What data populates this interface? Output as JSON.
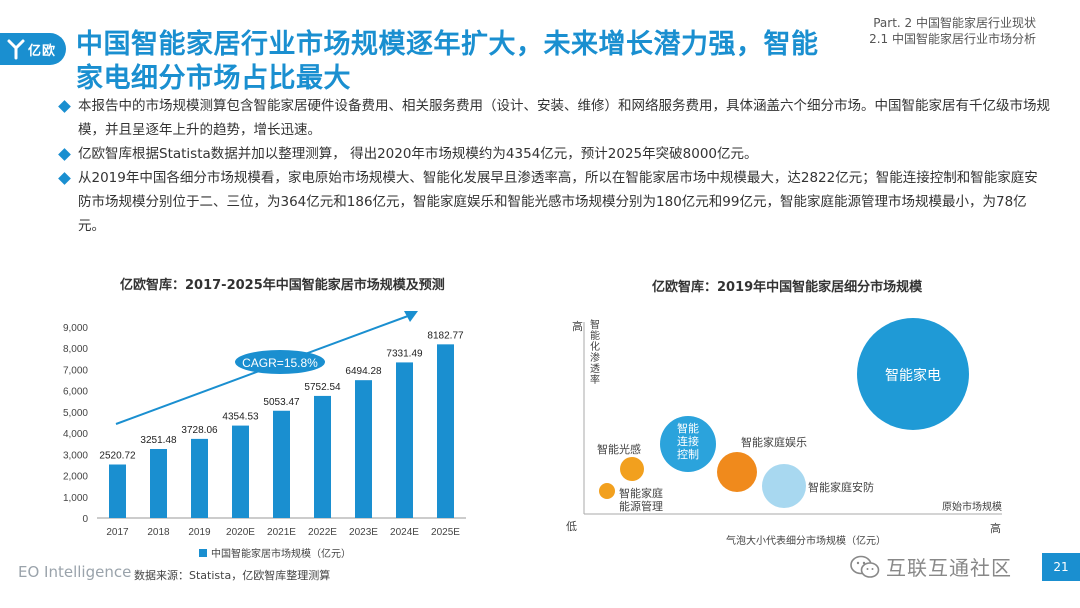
{
  "logo": {
    "text": "亿欧"
  },
  "header": {
    "part": "Part. 2 中国智能家居行业现状",
    "section": "2.1 中国智能家居行业市场分析",
    "title": "中国智能家居行业市场规模逐年扩大，未来增长潜力强，智能家电细分市场占比最大"
  },
  "bullets": [
    "本报告中的市场规模测算包含智能家居硬件设备费用、相关服务费用（设计、安装、维修）和网络服务费用，具体涵盖六个细分市场。中国智能家居有千亿级市场规模，并且呈逐年上升的趋势，增长迅速。",
    "亿欧智库根据Statista数据并加以整理测算， 得出2020年市场规模约为4354亿元，预计2025年突破8000亿元。",
    "从2019年中国各细分市场规模看，家电原始市场规模大、智能化发展早且渗透率高，所以在智能家居市场中规模最大，达2822亿元；智能连接控制和智能家庭安防市场规模分别位于二、三位，为364亿元和186亿元，智能家庭娱乐和智能光感市场规模分别为180亿元和99亿元，智能家庭能源管理市场规模最小，为78亿元。"
  ],
  "chart_data": [
    {
      "type": "bar",
      "title": "亿欧智库：2017-2025年中国智能家居市场规模及预测",
      "categories": [
        "2017",
        "2018",
        "2019",
        "2020E",
        "2021E",
        "2022E",
        "2023E",
        "2024E",
        "2025E"
      ],
      "series": [
        {
          "name": "中国智能家居市场规模（亿元）",
          "values": [
            2520.72,
            3251.48,
            3728.06,
            4354.53,
            5053.47,
            5752.54,
            6494.28,
            7331.49,
            8182.77
          ]
        }
      ],
      "value_labels": [
        "2520.72",
        "3251.48",
        "3728.06",
        "4354.53",
        "5053.47",
        "5752.54",
        "6494.28",
        "7331.49",
        "8182.77"
      ],
      "ylim": [
        0,
        9000
      ],
      "yticks": [
        "0",
        "1,000",
        "2,000",
        "3,000",
        "4,000",
        "5,000",
        "6,000",
        "7,000",
        "8,000",
        "9,000"
      ],
      "annotation": "CAGR=15.8%",
      "legend_position": "bottom",
      "bar_color": "#1a8fd0"
    },
    {
      "type": "scatter",
      "title": "亿欧智库：2019年中国智能家居细分市场规模",
      "xlabel": "原始市场规模",
      "ylabel": "智能化渗透率",
      "x_low": "低",
      "x_high": "高",
      "y_high": "高",
      "size_note": "气泡大小代表细分市场规模（亿元）",
      "bubbles": [
        {
          "label": "智能家电",
          "value": 2822,
          "color": "#1f9ad6",
          "label_inside": true
        },
        {
          "label": "智能连接控制",
          "value": 364,
          "color": "#2ba3dc",
          "label_inside": true
        },
        {
          "label": "智能家庭安防",
          "value": 186,
          "color": "#a8d8f0",
          "label_inside": false
        },
        {
          "label": "智能家庭娱乐",
          "value": 180,
          "color": "#f08a1c",
          "label_inside": false
        },
        {
          "label": "智能光感",
          "value": 99,
          "color": "#f2a01e",
          "label_inside": false
        },
        {
          "label": "智能家庭能源管理",
          "value": 78,
          "color": "#f2a01e",
          "label_inside": false
        }
      ]
    }
  ],
  "footer": {
    "brand": "EO Intelligence",
    "source": "数据来源：Statista，亿欧智库整理测算",
    "watermark": "互联互通社区",
    "page": "21"
  }
}
